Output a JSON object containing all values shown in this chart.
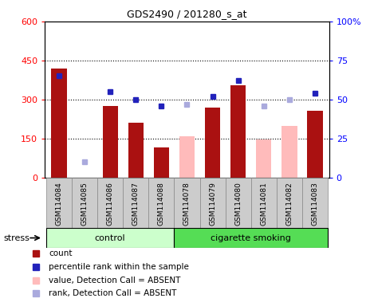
{
  "title": "GDS2490 / 201280_s_at",
  "samples": [
    "GSM114084",
    "GSM114085",
    "GSM114086",
    "GSM114087",
    "GSM114088",
    "GSM114078",
    "GSM114079",
    "GSM114080",
    "GSM114081",
    "GSM114082",
    "GSM114083"
  ],
  "groups": [
    "control",
    "control",
    "control",
    "control",
    "control",
    "cigarette smoking",
    "cigarette smoking",
    "cigarette smoking",
    "cigarette smoking",
    "cigarette smoking",
    "cigarette smoking"
  ],
  "count_values": [
    420,
    0,
    275,
    210,
    115,
    0,
    270,
    355,
    0,
    0,
    255
  ],
  "rank_values": [
    65,
    0,
    55,
    50,
    46,
    0,
    52,
    62,
    0,
    0,
    54
  ],
  "absent_value_values": [
    0,
    0,
    0,
    0,
    0,
    158,
    0,
    0,
    147,
    198,
    0
  ],
  "absent_rank_values": [
    0,
    10,
    0,
    0,
    0,
    47,
    0,
    0,
    46,
    50,
    0
  ],
  "ylim_left": [
    0,
    600
  ],
  "ylim_right": [
    0,
    100
  ],
  "ytick_labels_left": [
    "0",
    "150",
    "300",
    "450",
    "600"
  ],
  "ytick_labels_right": [
    "0",
    "25",
    "50",
    "75",
    "100%"
  ],
  "control_color": "#ccffcc",
  "smoking_color": "#55dd55",
  "bar_color_present": "#aa1111",
  "bar_color_absent": "#ffbbbb",
  "dot_color_present": "#2222bb",
  "dot_color_absent": "#aaaadd",
  "group_label_control": "control",
  "group_label_smoking": "cigarette smoking",
  "stress_label": "stress",
  "xticklabel_bg": "#cccccc",
  "legend_items": [
    {
      "label": "count",
      "color": "#aa1111"
    },
    {
      "label": "percentile rank within the sample",
      "color": "#2222bb"
    },
    {
      "label": "value, Detection Call = ABSENT",
      "color": "#ffbbbb"
    },
    {
      "label": "rank, Detection Call = ABSENT",
      "color": "#aaaadd"
    }
  ]
}
